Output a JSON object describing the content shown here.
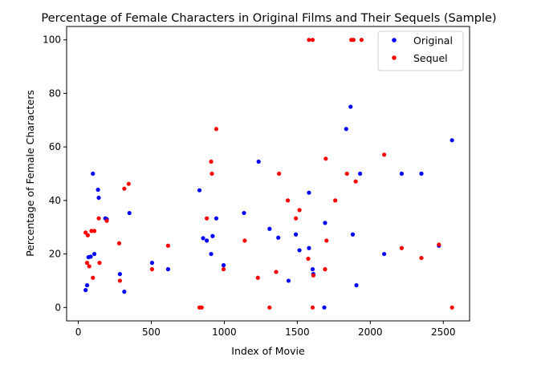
{
  "chart_data": {
    "type": "scatter",
    "title": "Percentage of Female Characters in Original Films and Their Sequels (Sample)",
    "xlabel": "Index of Movie",
    "ylabel": "Percentage of Female Characters",
    "xlim": [
      -80,
      2680
    ],
    "ylim": [
      -5,
      105
    ],
    "xticks": [
      0,
      500,
      1000,
      1500,
      2000,
      2500
    ],
    "yticks": [
      0,
      20,
      40,
      60,
      80,
      100
    ],
    "grid": false,
    "legend_position": "top-right",
    "series": [
      {
        "name": "Original",
        "color": "#0000ff",
        "points": [
          [
            50,
            6.5
          ],
          [
            60,
            8.3
          ],
          [
            70,
            18.8
          ],
          [
            85,
            19.0
          ],
          [
            100,
            50.0
          ],
          [
            110,
            20.0
          ],
          [
            135,
            44.0
          ],
          [
            140,
            41.0
          ],
          [
            185,
            33.3
          ],
          [
            195,
            33.0
          ],
          [
            285,
            12.5
          ],
          [
            315,
            5.9
          ],
          [
            350,
            35.3
          ],
          [
            505,
            16.7
          ],
          [
            615,
            14.3
          ],
          [
            830,
            43.8
          ],
          [
            855,
            25.9
          ],
          [
            880,
            25.0
          ],
          [
            910,
            20.0
          ],
          [
            920,
            26.7
          ],
          [
            945,
            33.3
          ],
          [
            995,
            15.8
          ],
          [
            1135,
            35.3
          ],
          [
            1235,
            54.5
          ],
          [
            1310,
            29.4
          ],
          [
            1370,
            26.1
          ],
          [
            1440,
            10.0
          ],
          [
            1490,
            27.3
          ],
          [
            1515,
            21.4
          ],
          [
            1580,
            22.2
          ],
          [
            1580,
            42.9
          ],
          [
            1605,
            14.3
          ],
          [
            1610,
            12.5
          ],
          [
            1685,
            0.0
          ],
          [
            1690,
            31.6
          ],
          [
            1835,
            66.7
          ],
          [
            1865,
            75.0
          ],
          [
            1880,
            27.3
          ],
          [
            1905,
            8.3
          ],
          [
            1930,
            50.0
          ],
          [
            2095,
            20.0
          ],
          [
            2215,
            50.0
          ],
          [
            2350,
            50.0
          ],
          [
            2470,
            23.1
          ],
          [
            2560,
            62.5
          ]
        ]
      },
      {
        "name": "Sequel",
        "color": "#ff0000",
        "points": [
          [
            50,
            28.0
          ],
          [
            60,
            16.7
          ],
          [
            65,
            27.0
          ],
          [
            75,
            15.4
          ],
          [
            90,
            28.6
          ],
          [
            100,
            11.1
          ],
          [
            110,
            28.6
          ],
          [
            140,
            33.3
          ],
          [
            145,
            16.7
          ],
          [
            195,
            32.4
          ],
          [
            280,
            24.0
          ],
          [
            285,
            10.0
          ],
          [
            315,
            44.4
          ],
          [
            345,
            46.2
          ],
          [
            505,
            14.3
          ],
          [
            615,
            23.1
          ],
          [
            830,
            0.0
          ],
          [
            845,
            0.0
          ],
          [
            880,
            33.3
          ],
          [
            910,
            54.5
          ],
          [
            915,
            50.0
          ],
          [
            945,
            66.7
          ],
          [
            995,
            14.3
          ],
          [
            1140,
            25.0
          ],
          [
            1230,
            11.1
          ],
          [
            1310,
            0.0
          ],
          [
            1355,
            13.3
          ],
          [
            1375,
            50.0
          ],
          [
            1435,
            40.0
          ],
          [
            1490,
            33.3
          ],
          [
            1515,
            36.4
          ],
          [
            1575,
            18.2
          ],
          [
            1580,
            100.0
          ],
          [
            1605,
            100.0
          ],
          [
            1605,
            0.0
          ],
          [
            1610,
            12.0
          ],
          [
            1690,
            14.3
          ],
          [
            1695,
            55.6
          ],
          [
            1700,
            25.0
          ],
          [
            1760,
            40.0
          ],
          [
            1840,
            50.0
          ],
          [
            1870,
            100.0
          ],
          [
            1885,
            100.0
          ],
          [
            1900,
            47.1
          ],
          [
            1940,
            100.0
          ],
          [
            2095,
            57.1
          ],
          [
            2215,
            22.2
          ],
          [
            2350,
            18.5
          ],
          [
            2470,
            23.5
          ],
          [
            2560,
            0.0
          ]
        ]
      }
    ]
  }
}
